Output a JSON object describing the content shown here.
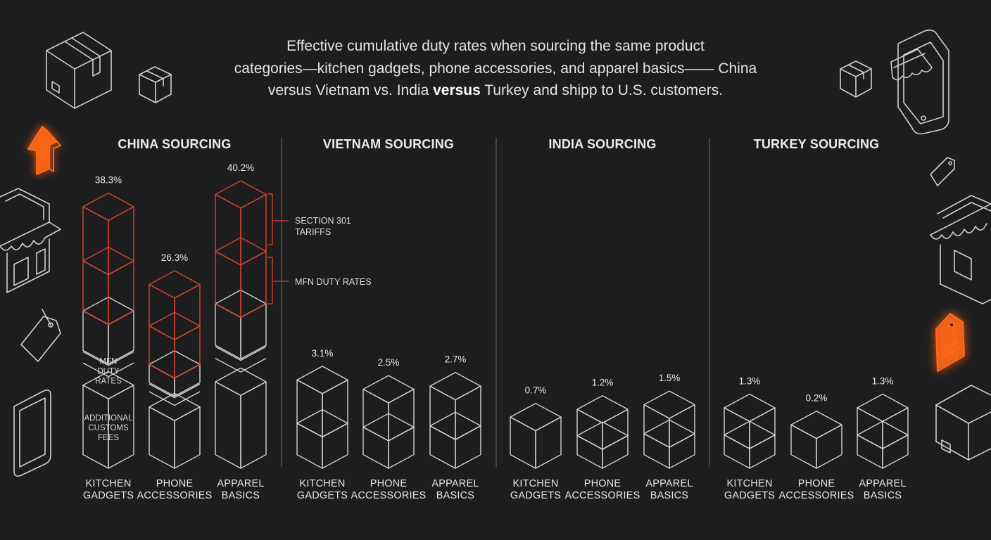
{
  "title": {
    "line1": "Effective cumulative duty rates when sourcing the same product",
    "line2": "categories—kitchen gadgets, phone accessories, and apparel basics—— China",
    "line3_a": "versus Vietnam vs. India ",
    "line3_bold": "versus",
    "line3_b": " Turkey and shipp to U.S. customers."
  },
  "colors": {
    "background": "#1d1d1f",
    "outline": "#d2d2d2",
    "tariff_outline": "#d9452f",
    "accent_orange": "#ff6a1a",
    "divider": "#5a5a5a"
  },
  "chart_data": {
    "type": "bar",
    "style": "isometric stacked cubes",
    "categories": [
      "KITCHEN GADGETS",
      "PHONE ACCESSORIES",
      "APPAREL BASICS"
    ],
    "category_lines": [
      [
        "KITCHEN",
        "GADGETS"
      ],
      [
        "PHONE",
        "ACCESSORIES"
      ],
      [
        "APPAREL",
        "BASICS"
      ]
    ],
    "value_unit": "%",
    "groups": [
      {
        "title": "CHINA SOURCING",
        "values": [
          38.3,
          26.3,
          40.2
        ],
        "labels": [
          "38.3%",
          "26.3%",
          "40.2%"
        ]
      },
      {
        "title": "VIETNAM SOURCING",
        "values": [
          3.1,
          2.5,
          2.7
        ],
        "labels": [
          "3.1%",
          "2.5%",
          "2.7%"
        ]
      },
      {
        "title": "INDIA SOURCING",
        "values": [
          0.7,
          1.2,
          1.5
        ],
        "labels": [
          "0.7%",
          "1.2%",
          "1.5%"
        ]
      },
      {
        "title": "TURKEY SOURCING",
        "values": [
          1.3,
          0.2,
          1.3
        ],
        "labels": [
          "1.3%",
          "0.2%",
          "1.3%"
        ]
      }
    ],
    "annotations": {
      "section301": [
        "SECTION 301",
        "TARIFFS"
      ],
      "mfn": "MFN DUTY RATES",
      "in_bar_mfn": [
        "MFN",
        "DUTY",
        "RATES"
      ],
      "in_bar_fees": [
        "ADDITIONAL",
        "CUSTOMS",
        "FEES"
      ]
    }
  },
  "icons": [
    "package-box-icon",
    "small-box-icon",
    "arrow-up-icon",
    "storefront-icon",
    "price-tag-icon",
    "tablet-icon",
    "phone-shop-icon",
    "box-icon",
    "price-tag-orange-icon",
    "storefront-right-icon",
    "package-box-right-icon"
  ]
}
